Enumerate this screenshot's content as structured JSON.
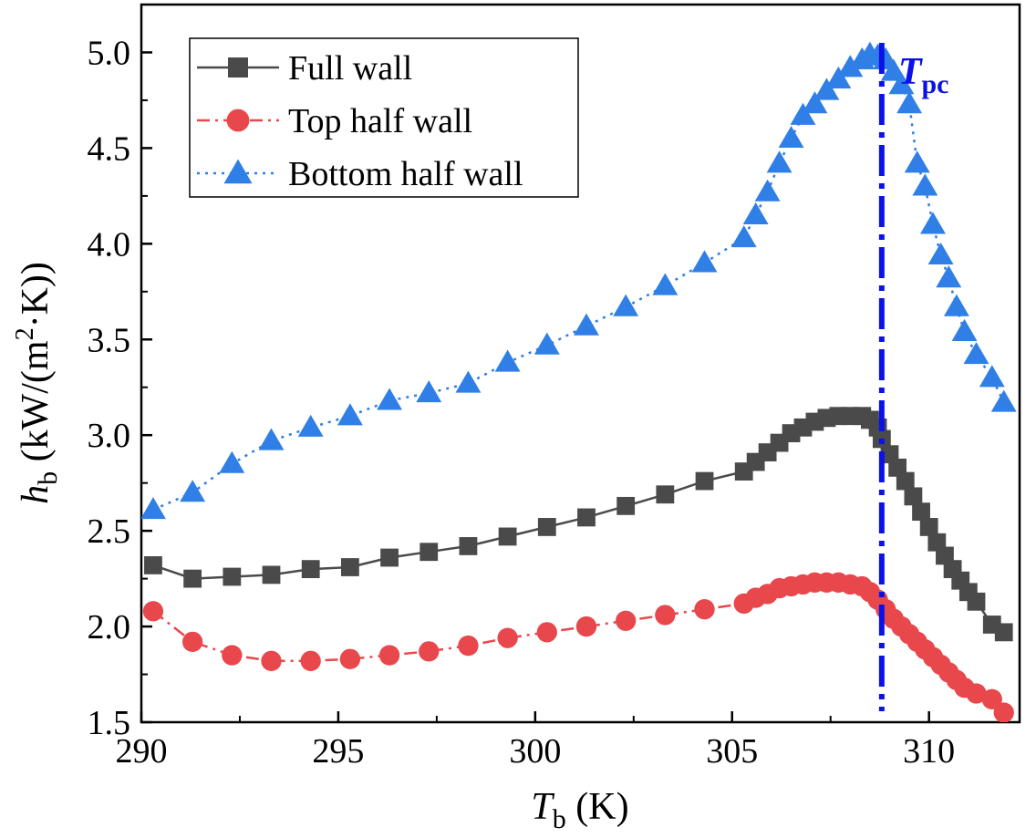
{
  "chart_data": {
    "type": "line",
    "title": "",
    "xlabel": {
      "main": "T",
      "sub": "b",
      "unit": " (K)"
    },
    "ylabel": {
      "main": "h",
      "sub": "b",
      "unit": " (kW/(m",
      "sup": "2",
      "unit_end": "·K))"
    },
    "xlim": [
      290,
      312.3
    ],
    "ylim": [
      1.5,
      5.25
    ],
    "xticks": [
      290,
      295,
      300,
      305,
      310
    ],
    "xtick_labels": [
      "290",
      "295",
      "300",
      "305",
      "310"
    ],
    "yticks": [
      1.5,
      2.0,
      2.5,
      3.0,
      3.5,
      4.0,
      4.5,
      5.0
    ],
    "ytick_labels": [
      "1.5",
      "2.0",
      "2.5",
      "3.0",
      "3.5",
      "4.0",
      "4.5",
      "5.0"
    ],
    "legend_position": "top-left",
    "reference_line": {
      "x": 308.8,
      "label_main": "T",
      "label_sub": "pc",
      "color": "#0a12e8"
    },
    "series": [
      {
        "name": "Full wall",
        "color": "#4a4a4a",
        "marker": "square",
        "linestyle": "solid",
        "x": [
          290.3,
          291.3,
          292.3,
          293.3,
          294.3,
          295.3,
          296.3,
          297.3,
          298.3,
          299.3,
          300.3,
          301.3,
          302.3,
          303.3,
          304.3,
          305.3,
          305.6,
          305.9,
          306.2,
          306.5,
          306.8,
          307.1,
          307.4,
          307.7,
          308.0,
          308.3,
          308.5,
          308.7,
          308.8,
          309.0,
          309.2,
          309.4,
          309.6,
          309.8,
          310.0,
          310.2,
          310.4,
          310.6,
          310.8,
          311.0,
          311.2,
          311.6,
          311.9
        ],
        "y": [
          2.32,
          2.25,
          2.26,
          2.27,
          2.3,
          2.31,
          2.36,
          2.39,
          2.42,
          2.47,
          2.52,
          2.57,
          2.63,
          2.69,
          2.76,
          2.81,
          2.86,
          2.91,
          2.96,
          3.01,
          3.04,
          3.07,
          3.09,
          3.1,
          3.1,
          3.1,
          3.08,
          3.04,
          2.98,
          2.9,
          2.83,
          2.76,
          2.68,
          2.6,
          2.52,
          2.44,
          2.37,
          2.3,
          2.24,
          2.18,
          2.13,
          2.01,
          1.97
        ]
      },
      {
        "name": "Top half wall",
        "color": "#e8474c",
        "marker": "circle",
        "linestyle": "dashdot",
        "x": [
          290.3,
          291.3,
          292.3,
          293.3,
          294.3,
          295.3,
          296.3,
          297.3,
          298.3,
          299.3,
          300.3,
          301.3,
          302.3,
          303.3,
          304.3,
          305.3,
          305.6,
          305.9,
          306.2,
          306.5,
          306.8,
          307.1,
          307.4,
          307.7,
          308.0,
          308.3,
          308.5,
          308.7,
          308.9,
          309.1,
          309.3,
          309.5,
          309.7,
          309.9,
          310.1,
          310.3,
          310.5,
          310.7,
          310.9,
          311.2,
          311.6,
          311.9
        ],
        "y": [
          2.08,
          1.92,
          1.85,
          1.82,
          1.82,
          1.83,
          1.85,
          1.87,
          1.9,
          1.94,
          1.97,
          2.0,
          2.03,
          2.06,
          2.09,
          2.12,
          2.15,
          2.17,
          2.2,
          2.21,
          2.22,
          2.23,
          2.23,
          2.23,
          2.22,
          2.21,
          2.18,
          2.14,
          2.09,
          2.04,
          2.0,
          1.96,
          1.92,
          1.88,
          1.84,
          1.8,
          1.76,
          1.72,
          1.68,
          1.65,
          1.62,
          1.55
        ]
      },
      {
        "name": "Bottom half wall",
        "color": "#2f7fe6",
        "marker": "triangle",
        "linestyle": "dotted",
        "x": [
          290.3,
          291.3,
          292.3,
          293.3,
          294.3,
          295.3,
          296.3,
          297.3,
          298.3,
          299.3,
          300.3,
          301.3,
          302.3,
          303.3,
          304.3,
          305.3,
          305.6,
          305.9,
          306.2,
          306.5,
          306.8,
          307.1,
          307.4,
          307.7,
          308.0,
          308.3,
          308.5,
          308.7,
          308.9,
          309.1,
          309.3,
          309.5,
          309.7,
          309.9,
          310.1,
          310.3,
          310.5,
          310.7,
          310.9,
          311.2,
          311.6,
          311.9
        ],
        "y": [
          2.61,
          2.7,
          2.85,
          2.97,
          3.04,
          3.1,
          3.18,
          3.22,
          3.27,
          3.38,
          3.47,
          3.57,
          3.67,
          3.78,
          3.9,
          4.03,
          4.15,
          4.27,
          4.42,
          4.55,
          4.67,
          4.73,
          4.8,
          4.86,
          4.92,
          4.96,
          4.99,
          4.98,
          4.96,
          4.9,
          4.83,
          4.73,
          4.42,
          4.3,
          4.1,
          3.94,
          3.82,
          3.67,
          3.54,
          3.42,
          3.3,
          3.17
        ]
      }
    ]
  }
}
